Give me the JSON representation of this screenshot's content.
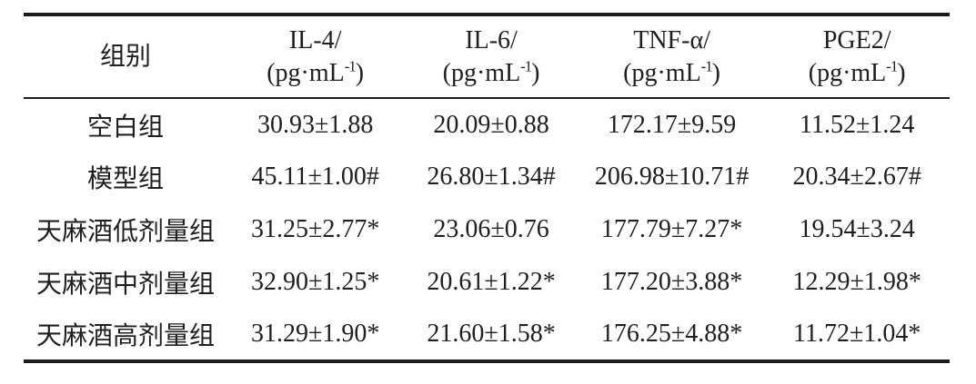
{
  "table": {
    "header": {
      "group_col": "组别",
      "columns": [
        {
          "name": "IL-4/"
        },
        {
          "name": "IL-6/"
        },
        {
          "name": "TNF-α/"
        },
        {
          "name": "PGE2/"
        }
      ],
      "unit_prefix": "(pg·mL",
      "unit_sup": "-1",
      "unit_suffix": ")"
    },
    "rows": [
      {
        "label": "空白组",
        "values": [
          "30.93±1.88",
          "20.09±0.88",
          "172.17±9.59",
          "11.52±1.24"
        ]
      },
      {
        "label": "模型组",
        "values": [
          "45.11±1.00#",
          "26.80±1.34#",
          "206.98±10.71#",
          "20.34±2.67#"
        ]
      },
      {
        "label": "天麻酒低剂量组",
        "values": [
          "31.25±2.77*",
          "23.06±0.76",
          "177.79±7.27*",
          "19.54±3.24"
        ]
      },
      {
        "label": "天麻酒中剂量组",
        "values": [
          "32.90±1.25*",
          "20.61±1.22*",
          "177.20±3.88*",
          "12.29±1.98*"
        ]
      },
      {
        "label": "天麻酒高剂量组",
        "values": [
          "31.29±1.90*",
          "21.60±1.58*",
          "176.25±4.88*",
          "11.72±1.04*"
        ]
      }
    ]
  }
}
